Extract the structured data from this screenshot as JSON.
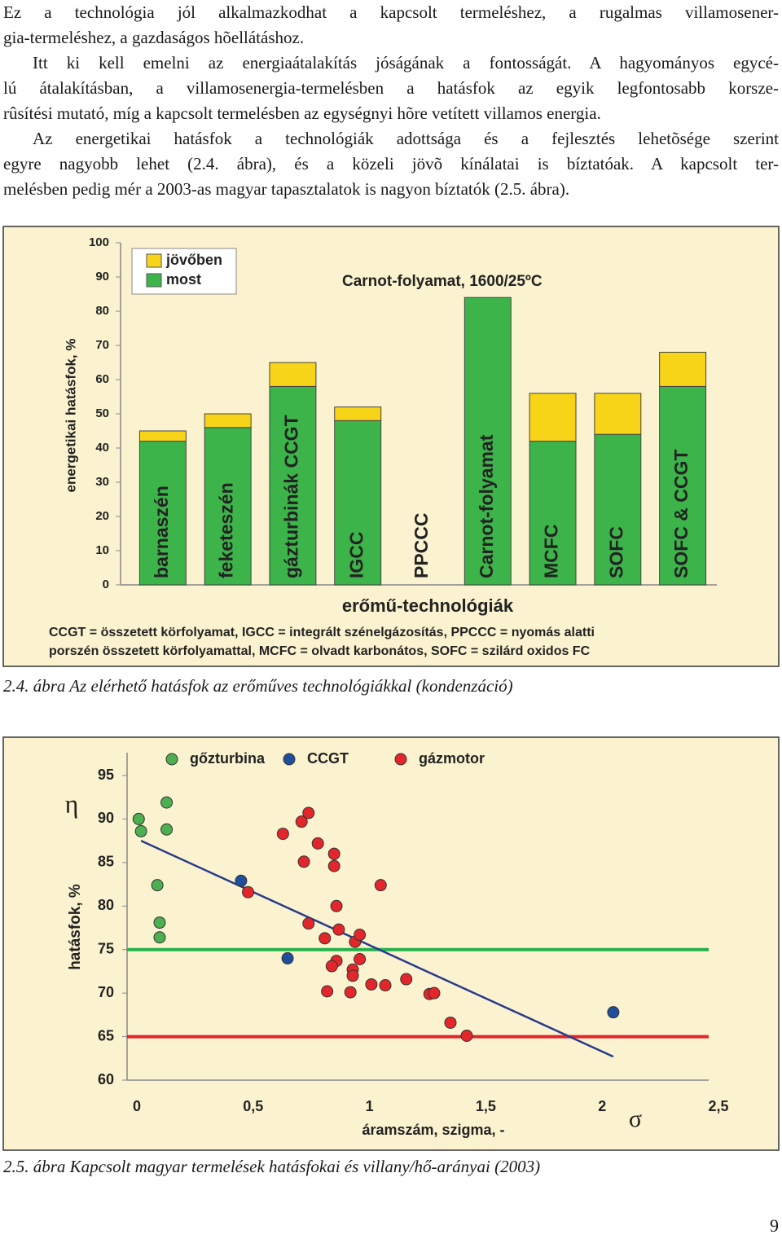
{
  "paragraphs": [
    [
      "Ez a technológia jól alkalmazkodhat a kapcsolt termeléshez, a rugalmas villamosener-",
      "gia-termeléshez, a gazdaságos hõellátáshoz."
    ],
    [
      "Itt ki kell emelni az energiaátalakítás jóságának a fontosságát. A hagyományos egycé-",
      "lú átalakításban, a villamosenergia-termelésben a hatásfok az egyik legfontosabb korsze-",
      "rûsítési mutató, míg a kapcsolt termelésben az egységnyi hõre vetített villamos energia."
    ],
    [
      "Az energetikai hatásfok a technológiák adottsága és a fejlesztés lehetõsége szerint",
      "egyre nagyobb lehet (2.4. ábra), és a közeli jövõ kínálatai is bíztatóak. A kapcsolt ter-",
      "melésben pedig mér a 2003-as magyar tapasztalatok is nagyon bíztatók (2.5. ábra)."
    ]
  ],
  "chart_data": [
    {
      "type": "stacked_bar",
      "annotation": "Carnot-folyamat, 1600/25ºC",
      "y_label": "energetikai hatásfok, %",
      "x_label": "erőmű-technológiák",
      "footnote": [
        "CCGT = összetett körfolyamat, IGCC = integrált szénelgázosítás, PPCCC = nyomás alatti",
        "porszén összetett körfolyamattal, MCFC = olvadt karbonátos, SOFC = szilárd oxidos FC"
      ],
      "categories": [
        "barnaszén",
        "feketeszén",
        "gázturbinák CCGT",
        "IGCC",
        "PPCCC",
        "Carnot-folyamat",
        "MCFC",
        "SOFC",
        "SOFC & CCGT"
      ],
      "series": [
        {
          "name": "jövőben",
          "color": "#f7d417",
          "values": [
            3,
            4,
            7,
            4,
            null,
            null,
            14,
            12,
            10
          ]
        },
        {
          "name": "most",
          "color": "#3cb44a",
          "values": [
            42,
            46,
            58,
            48,
            null,
            84,
            42,
            44,
            58
          ]
        }
      ],
      "ylim": [
        0,
        100
      ],
      "yticks": [
        0,
        10,
        20,
        30,
        40,
        50,
        60,
        70,
        80,
        90,
        100
      ],
      "background": "#fbf3cf"
    },
    {
      "type": "scatter",
      "symbol": "η",
      "y_label": "hatásfok, %",
      "x_label": "áramszám, szigma, -",
      "x_symbol": "σ",
      "series": [
        {
          "name": "gőzturbina",
          "color": "#4caf50",
          "x": [
            0.05,
            0.06,
            0.17,
            0.17,
            0.13,
            0.14,
            0.14
          ],
          "values": [
            90,
            88.6,
            91.9,
            88.8,
            82.4,
            78.1,
            76.4
          ]
        },
        {
          "name": "CCGT",
          "color": "#1f4e9c",
          "x": [
            0.49,
            0.69,
            2.09
          ],
          "values": [
            82.9,
            74.0,
            67.8
          ]
        },
        {
          "name": "gázmotor",
          "color": "#e3262b",
          "x": [
            0.52,
            0.67,
            0.78,
            0.75,
            0.82,
            0.76,
            0.89,
            0.89,
            1.09,
            0.9,
            0.78,
            0.91,
            0.85,
            0.98,
            1.0,
            1.0,
            0.9,
            0.88,
            0.97,
            0.97,
            1.05,
            1.11,
            1.2,
            0.86,
            0.96,
            1.3,
            1.32,
            1.39,
            1.46
          ],
          "values": [
            81.6,
            88.3,
            90.7,
            89.7,
            87.2,
            85.1,
            86.0,
            84.6,
            82.4,
            80.0,
            78.0,
            77.3,
            76.3,
            75.9,
            76.7,
            73.9,
            73.7,
            73.1,
            72.7,
            72.0,
            71.0,
            70.9,
            71.6,
            70.2,
            70.1,
            69.9,
            70.0,
            66.6,
            65.1
          ]
        }
      ],
      "trend_line": {
        "color": "#2a3a8c",
        "x": [
          0.06,
          2.09
        ],
        "values": [
          87.5,
          62.7
        ]
      },
      "reference_lines": [
        {
          "value": 75,
          "color": "#22b14c"
        },
        {
          "value": 65,
          "color": "#e3262b"
        }
      ],
      "xlim": [
        0,
        2.5
      ],
      "xticks": [
        0,
        {
          "value": 0.5,
          "label": "0,5"
        },
        1,
        {
          "value": 1.5,
          "label": "1,5"
        },
        2,
        {
          "value": 2.5,
          "label": "2,5"
        }
      ],
      "ylim": [
        60,
        95
      ],
      "yticks": [
        60,
        65,
        70,
        75,
        80,
        85,
        90,
        95
      ],
      "background": "#fbf3cf"
    }
  ],
  "captions": [
    "2.4. ábra Az elérhető hatásfok az erőműves technológiákkal (kondenzáció)",
    "2.5. ábra Kapcsolt magyar termelések hatásfokai és villany/hő-arányai (2003)"
  ],
  "page_number": "9"
}
